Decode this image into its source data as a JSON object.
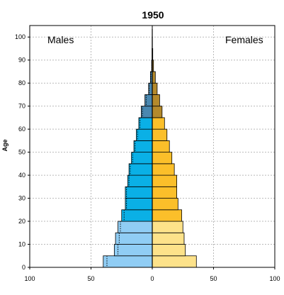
{
  "chart_data": {
    "type": "bar",
    "title": "1950",
    "ylabel": "Age",
    "left_label": "Males",
    "right_label": "Females",
    "age_ticks": [
      0,
      10,
      20,
      30,
      40,
      50,
      60,
      70,
      80,
      90,
      100
    ],
    "value_ticks": [
      100,
      50,
      0,
      50,
      100
    ],
    "xlim": [
      -100,
      100
    ],
    "ylim": [
      0,
      105
    ],
    "grid": true,
    "age_groups": [
      "0-4",
      "5-9",
      "10-14",
      "15-19",
      "20-24",
      "25-29",
      "30-34",
      "35-39",
      "40-44",
      "45-49",
      "50-54",
      "55-59",
      "60-64",
      "65-69",
      "70-74",
      "75-79",
      "80-84",
      "85-89",
      "90-94",
      "95-99",
      "100+"
    ],
    "series": [
      {
        "name": "Males",
        "values": [
          40,
          31,
          30,
          28,
          25,
          22,
          22,
          20,
          19,
          17,
          15,
          13,
          11,
          9,
          6,
          3,
          1.5,
          0.5,
          0.2,
          0.1,
          0.05
        ],
        "secondary": [
          37,
          28,
          27,
          26,
          23,
          21,
          21,
          19,
          18,
          16,
          14,
          12,
          10,
          8,
          5,
          2.5,
          1.2,
          0.4,
          0.2,
          0.1,
          0.05
        ]
      },
      {
        "name": "Females",
        "values": [
          36,
          27,
          26,
          25,
          24,
          21,
          20,
          20,
          18,
          16,
          14,
          12,
          10,
          8,
          6,
          4,
          2.5,
          1,
          0.4,
          0.1,
          0.05
        ]
      }
    ],
    "colors": {
      "male_young": "#90cdf4",
      "male_adult": "#0ab0e6",
      "male_old": "#4a88b0",
      "female_young": "#fde28a",
      "female_adult": "#fbbf2a",
      "female_old": "#b48a2c"
    },
    "color_groups": {
      "young_max_age": 20,
      "old_min_age": 65
    }
  }
}
